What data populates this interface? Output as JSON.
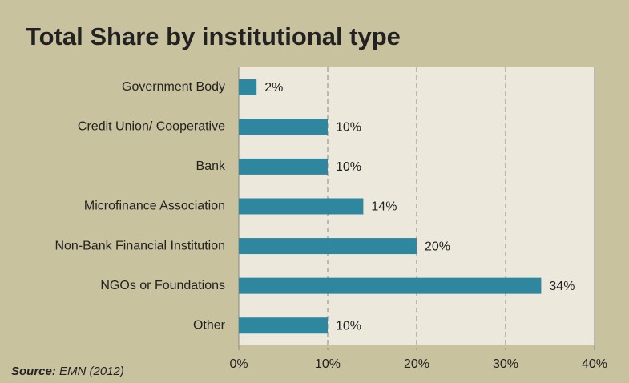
{
  "chart_data": {
    "type": "bar",
    "orientation": "horizontal",
    "title": "Total Share by institutional type",
    "categories": [
      "Government Body",
      "Credit Union/ Cooperative",
      "Bank",
      "Microfinance Association",
      "Non-Bank Financial Institution",
      "NGOs or Foundations",
      "Other"
    ],
    "values": [
      2,
      10,
      10,
      14,
      20,
      34,
      10
    ],
    "value_labels": [
      "2%",
      "10%",
      "10%",
      "14%",
      "20%",
      "34%",
      "10%"
    ],
    "color": "#2f869f",
    "xlim": [
      0,
      40
    ],
    "xticks": [
      {
        "value": 0,
        "label": "0%"
      },
      {
        "value": 10,
        "label": "10%"
      },
      {
        "value": 20,
        "label": "20%"
      },
      {
        "value": 30,
        "label": "30%"
      },
      {
        "value": 40,
        "label": "40%"
      }
    ],
    "grid": true,
    "source_label": "Source:",
    "source": "EMN (2012)"
  }
}
